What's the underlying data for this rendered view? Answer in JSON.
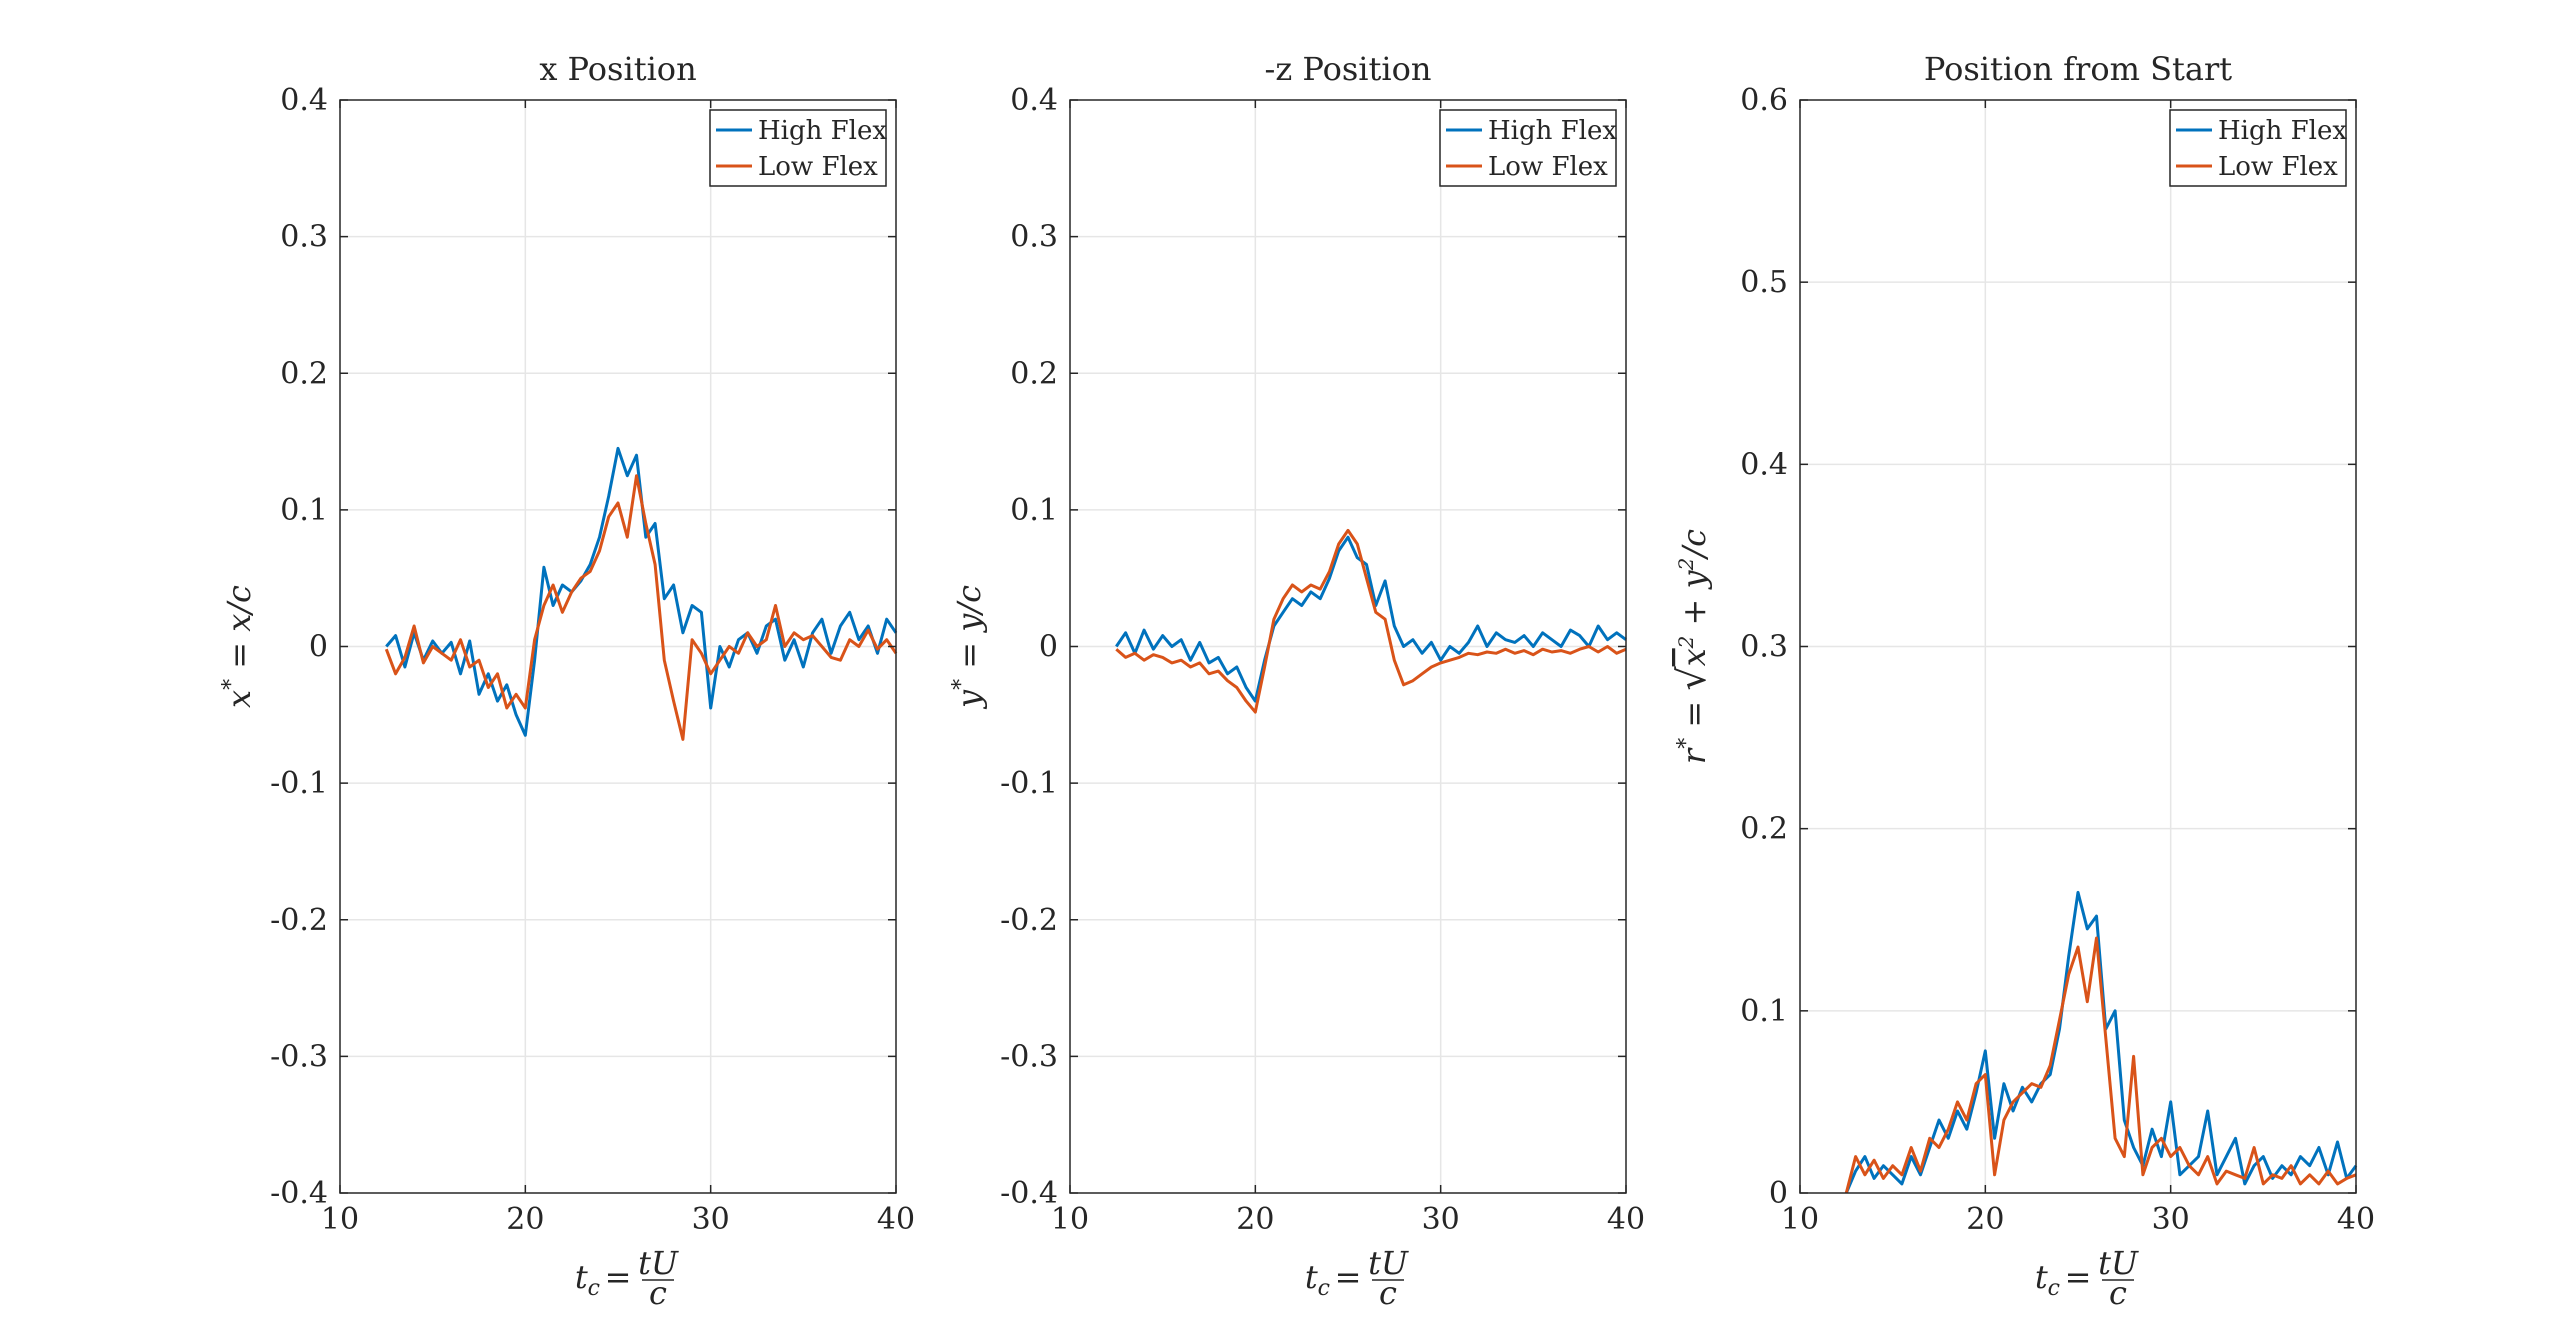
{
  "chart_data": [
    {
      "type": "line",
      "title": "x Position",
      "xlabel": "t_c = tU/c",
      "xlabel_parts": {
        "lhs": "t",
        "lhs_sub": "c",
        "eq": "=",
        "num": "tU",
        "den": "c"
      },
      "ylabel": "x* = x/c",
      "ylabel_parts": {
        "lhs": "x",
        "lhs_sup": "*",
        "eq": "=",
        "rhs": "x/c"
      },
      "xlim": [
        10,
        40
      ],
      "ylim": [
        -0.4,
        0.4
      ],
      "xticks": [
        10,
        20,
        30,
        40
      ],
      "xtick_labels": [
        "10",
        "20",
        "30",
        "40"
      ],
      "yticks": [
        -0.4,
        -0.3,
        -0.2,
        -0.1,
        0,
        0.1,
        0.2,
        0.3,
        0.4
      ],
      "ytick_labels": [
        "-0.4",
        "-0.3",
        "-0.2",
        "-0.1",
        "0",
        "0.1",
        "0.2",
        "0.3",
        "0.4"
      ],
      "grid": true,
      "legend": "top-right",
      "series": [
        {
          "name": "High Flex",
          "color": "#0072BD",
          "x": [
            12.5,
            13.0,
            13.5,
            14.0,
            14.5,
            15.0,
            15.5,
            16.0,
            16.5,
            17.0,
            17.5,
            18.0,
            18.5,
            19.0,
            19.5,
            20.0,
            20.5,
            21.0,
            21.5,
            22.0,
            22.5,
            23.0,
            23.5,
            24.0,
            24.5,
            25.0,
            25.5,
            26.0,
            26.5,
            27.0,
            27.5,
            28.0,
            28.5,
            29.0,
            29.5,
            30.0,
            30.5,
            31.0,
            31.5,
            32.0,
            32.5,
            33.0,
            33.5,
            34.0,
            34.5,
            35.0,
            35.5,
            36.0,
            36.5,
            37.0,
            37.5,
            38.0,
            38.5,
            39.0,
            39.5,
            40.0
          ],
          "y": [
            0.0,
            0.008,
            -0.015,
            0.01,
            -0.01,
            0.004,
            -0.005,
            0.003,
            -0.02,
            0.004,
            -0.035,
            -0.02,
            -0.04,
            -0.028,
            -0.05,
            -0.065,
            -0.01,
            0.058,
            0.03,
            0.045,
            0.04,
            0.048,
            0.06,
            0.08,
            0.11,
            0.145,
            0.125,
            0.14,
            0.08,
            0.09,
            0.035,
            0.045,
            0.01,
            0.03,
            0.025,
            -0.045,
            0.0,
            -0.015,
            0.005,
            0.01,
            -0.005,
            0.015,
            0.02,
            -0.01,
            0.005,
            -0.015,
            0.01,
            0.02,
            -0.005,
            0.015,
            0.025,
            0.005,
            0.015,
            -0.005,
            0.02,
            0.01
          ]
        },
        {
          "name": "Low Flex",
          "color": "#D95319",
          "x": [
            12.5,
            13.0,
            13.5,
            14.0,
            14.5,
            15.0,
            15.5,
            16.0,
            16.5,
            17.0,
            17.5,
            18.0,
            18.5,
            19.0,
            19.5,
            20.0,
            20.5,
            21.0,
            21.5,
            22.0,
            22.5,
            23.0,
            23.5,
            24.0,
            24.5,
            25.0,
            25.5,
            26.0,
            26.5,
            27.0,
            27.5,
            28.0,
            28.5,
            29.0,
            29.5,
            30.0,
            30.5,
            31.0,
            31.5,
            32.0,
            32.5,
            33.0,
            33.5,
            34.0,
            34.5,
            35.0,
            35.5,
            36.0,
            36.5,
            37.0,
            37.5,
            38.0,
            38.5,
            39.0,
            39.5,
            40.0
          ],
          "y": [
            -0.002,
            -0.02,
            -0.008,
            0.015,
            -0.012,
            0.0,
            -0.005,
            -0.01,
            0.005,
            -0.015,
            -0.01,
            -0.03,
            -0.02,
            -0.045,
            -0.035,
            -0.045,
            0.005,
            0.03,
            0.045,
            0.025,
            0.04,
            0.05,
            0.055,
            0.07,
            0.095,
            0.105,
            0.08,
            0.125,
            0.09,
            0.06,
            -0.01,
            -0.04,
            -0.068,
            0.005,
            -0.005,
            -0.02,
            -0.01,
            0.0,
            -0.005,
            0.01,
            0.0,
            0.005,
            0.03,
            0.0,
            0.01,
            0.005,
            0.008,
            0.0,
            -0.008,
            -0.01,
            0.005,
            0.0,
            0.012,
            -0.002,
            0.005,
            -0.005
          ]
        }
      ]
    },
    {
      "type": "line",
      "title": "-z Position",
      "xlabel": "t_c = tU/c",
      "xlabel_parts": {
        "lhs": "t",
        "lhs_sub": "c",
        "eq": "=",
        "num": "tU",
        "den": "c"
      },
      "ylabel": "y* = y/c",
      "ylabel_parts": {
        "lhs": "y",
        "lhs_sup": "*",
        "eq": "=",
        "rhs": "y/c"
      },
      "xlim": [
        10,
        40
      ],
      "ylim": [
        -0.4,
        0.4
      ],
      "xticks": [
        10,
        20,
        30,
        40
      ],
      "xtick_labels": [
        "10",
        "20",
        "30",
        "40"
      ],
      "yticks": [
        -0.4,
        -0.3,
        -0.2,
        -0.1,
        0,
        0.1,
        0.2,
        0.3,
        0.4
      ],
      "ytick_labels": [
        "-0.4",
        "-0.3",
        "-0.2",
        "-0.1",
        "0",
        "0.1",
        "0.2",
        "0.3",
        "0.4"
      ],
      "grid": true,
      "legend": "top-right",
      "series": [
        {
          "name": "High Flex",
          "color": "#0072BD",
          "x": [
            12.5,
            13.0,
            13.5,
            14.0,
            14.5,
            15.0,
            15.5,
            16.0,
            16.5,
            17.0,
            17.5,
            18.0,
            18.5,
            19.0,
            19.5,
            20.0,
            20.5,
            21.0,
            21.5,
            22.0,
            22.5,
            23.0,
            23.5,
            24.0,
            24.5,
            25.0,
            25.5,
            26.0,
            26.5,
            27.0,
            27.5,
            28.0,
            28.5,
            29.0,
            29.5,
            30.0,
            30.5,
            31.0,
            31.5,
            32.0,
            32.5,
            33.0,
            33.5,
            34.0,
            34.5,
            35.0,
            35.5,
            36.0,
            36.5,
            37.0,
            37.5,
            38.0,
            38.5,
            39.0,
            39.5,
            40.0
          ],
          "y": [
            0.0,
            0.01,
            -0.005,
            0.012,
            -0.002,
            0.008,
            0.0,
            0.005,
            -0.01,
            0.003,
            -0.012,
            -0.008,
            -0.02,
            -0.015,
            -0.03,
            -0.04,
            -0.01,
            0.015,
            0.025,
            0.035,
            0.03,
            0.04,
            0.035,
            0.05,
            0.07,
            0.08,
            0.065,
            0.06,
            0.03,
            0.048,
            0.015,
            0.0,
            0.005,
            -0.005,
            0.003,
            -0.01,
            0.0,
            -0.005,
            0.003,
            0.015,
            0.0,
            0.01,
            0.005,
            0.003,
            0.008,
            0.0,
            0.01,
            0.005,
            0.0,
            0.012,
            0.008,
            0.0,
            0.015,
            0.005,
            0.01,
            0.005
          ]
        },
        {
          "name": "Low Flex",
          "color": "#D95319",
          "x": [
            12.5,
            13.0,
            13.5,
            14.0,
            14.5,
            15.0,
            15.5,
            16.0,
            16.5,
            17.0,
            17.5,
            18.0,
            18.5,
            19.0,
            19.5,
            20.0,
            20.5,
            21.0,
            21.5,
            22.0,
            22.5,
            23.0,
            23.5,
            24.0,
            24.5,
            25.0,
            25.5,
            26.0,
            26.5,
            27.0,
            27.5,
            28.0,
            28.5,
            29.0,
            29.5,
            30.0,
            30.5,
            31.0,
            31.5,
            32.0,
            32.5,
            33.0,
            33.5,
            34.0,
            34.5,
            35.0,
            35.5,
            36.0,
            36.5,
            37.0,
            37.5,
            38.0,
            38.5,
            39.0,
            39.5,
            40.0
          ],
          "y": [
            -0.002,
            -0.008,
            -0.005,
            -0.01,
            -0.006,
            -0.008,
            -0.012,
            -0.01,
            -0.015,
            -0.012,
            -0.02,
            -0.018,
            -0.025,
            -0.03,
            -0.04,
            -0.048,
            -0.015,
            0.02,
            0.035,
            0.045,
            0.04,
            0.045,
            0.042,
            0.055,
            0.075,
            0.085,
            0.075,
            0.05,
            0.025,
            0.02,
            -0.01,
            -0.028,
            -0.025,
            -0.02,
            -0.015,
            -0.012,
            -0.01,
            -0.008,
            -0.005,
            -0.006,
            -0.004,
            -0.005,
            -0.002,
            -0.005,
            -0.003,
            -0.006,
            -0.002,
            -0.004,
            -0.003,
            -0.005,
            -0.002,
            0.0,
            -0.004,
            0.0,
            -0.005,
            -0.002
          ]
        }
      ]
    },
    {
      "type": "line",
      "title": "Position from Start",
      "xlabel": "t_c = tU/c",
      "xlabel_parts": {
        "lhs": "t",
        "lhs_sub": "c",
        "eq": "=",
        "num": "tU",
        "den": "c"
      },
      "ylabel": "r* = sqrt(x^2 + y^2)/c",
      "ylabel_parts": {
        "lhs": "r",
        "lhs_sup": "*",
        "eq": "=",
        "rad_a": "x",
        "rad_plus": "+",
        "rad_b": "y",
        "rad_pow": "2",
        "rhs": "/c"
      },
      "xlim": [
        10,
        40
      ],
      "ylim": [
        0,
        0.6
      ],
      "xticks": [
        10,
        20,
        30,
        40
      ],
      "xtick_labels": [
        "10",
        "20",
        "30",
        "40"
      ],
      "yticks": [
        0,
        0.1,
        0.2,
        0.3,
        0.4,
        0.5,
        0.6
      ],
      "ytick_labels": [
        "0",
        "0.1",
        "0.2",
        "0.3",
        "0.4",
        "0.5",
        "0.6"
      ],
      "grid": true,
      "legend": "top-right",
      "series": [
        {
          "name": "High Flex",
          "color": "#0072BD",
          "x": [
            12.5,
            13.0,
            13.5,
            14.0,
            14.5,
            15.0,
            15.5,
            16.0,
            16.5,
            17.0,
            17.5,
            18.0,
            18.5,
            19.0,
            19.5,
            20.0,
            20.5,
            21.0,
            21.5,
            22.0,
            22.5,
            23.0,
            23.5,
            24.0,
            24.5,
            25.0,
            25.5,
            26.0,
            26.5,
            27.0,
            27.5,
            28.0,
            28.5,
            29.0,
            29.5,
            30.0,
            30.5,
            31.0,
            31.5,
            32.0,
            32.5,
            33.0,
            33.5,
            34.0,
            34.5,
            35.0,
            35.5,
            36.0,
            36.5,
            37.0,
            37.5,
            38.0,
            38.5,
            39.0,
            39.5,
            40.0
          ],
          "y": [
            0.0,
            0.012,
            0.02,
            0.008,
            0.015,
            0.01,
            0.005,
            0.02,
            0.01,
            0.025,
            0.04,
            0.03,
            0.045,
            0.035,
            0.055,
            0.078,
            0.03,
            0.06,
            0.045,
            0.058,
            0.05,
            0.06,
            0.065,
            0.09,
            0.13,
            0.165,
            0.145,
            0.152,
            0.09,
            0.1,
            0.04,
            0.025,
            0.015,
            0.035,
            0.02,
            0.05,
            0.01,
            0.015,
            0.02,
            0.045,
            0.01,
            0.02,
            0.03,
            0.005,
            0.015,
            0.02,
            0.008,
            0.015,
            0.01,
            0.02,
            0.015,
            0.025,
            0.01,
            0.028,
            0.008,
            0.015
          ]
        },
        {
          "name": "Low Flex",
          "color": "#D95319",
          "x": [
            12.5,
            13.0,
            13.5,
            14.0,
            14.5,
            15.0,
            15.5,
            16.0,
            16.5,
            17.0,
            17.5,
            18.0,
            18.5,
            19.0,
            19.5,
            20.0,
            20.5,
            21.0,
            21.5,
            22.0,
            22.5,
            23.0,
            23.5,
            24.0,
            24.5,
            25.0,
            25.5,
            26.0,
            26.5,
            27.0,
            27.5,
            28.0,
            28.5,
            29.0,
            29.5,
            30.0,
            30.5,
            31.0,
            31.5,
            32.0,
            32.5,
            33.0,
            33.5,
            34.0,
            34.5,
            35.0,
            35.5,
            36.0,
            36.5,
            37.0,
            37.5,
            38.0,
            38.5,
            39.0,
            39.5,
            40.0
          ],
          "y": [
            0.0,
            0.02,
            0.01,
            0.018,
            0.008,
            0.015,
            0.01,
            0.025,
            0.012,
            0.03,
            0.025,
            0.035,
            0.05,
            0.04,
            0.06,
            0.065,
            0.01,
            0.04,
            0.05,
            0.055,
            0.06,
            0.058,
            0.07,
            0.095,
            0.12,
            0.135,
            0.105,
            0.14,
            0.085,
            0.03,
            0.02,
            0.075,
            0.01,
            0.025,
            0.03,
            0.02,
            0.025,
            0.015,
            0.01,
            0.02,
            0.005,
            0.012,
            0.01,
            0.008,
            0.025,
            0.005,
            0.01,
            0.008,
            0.015,
            0.005,
            0.01,
            0.005,
            0.012,
            0.005,
            0.008,
            0.01
          ]
        }
      ]
    }
  ]
}
